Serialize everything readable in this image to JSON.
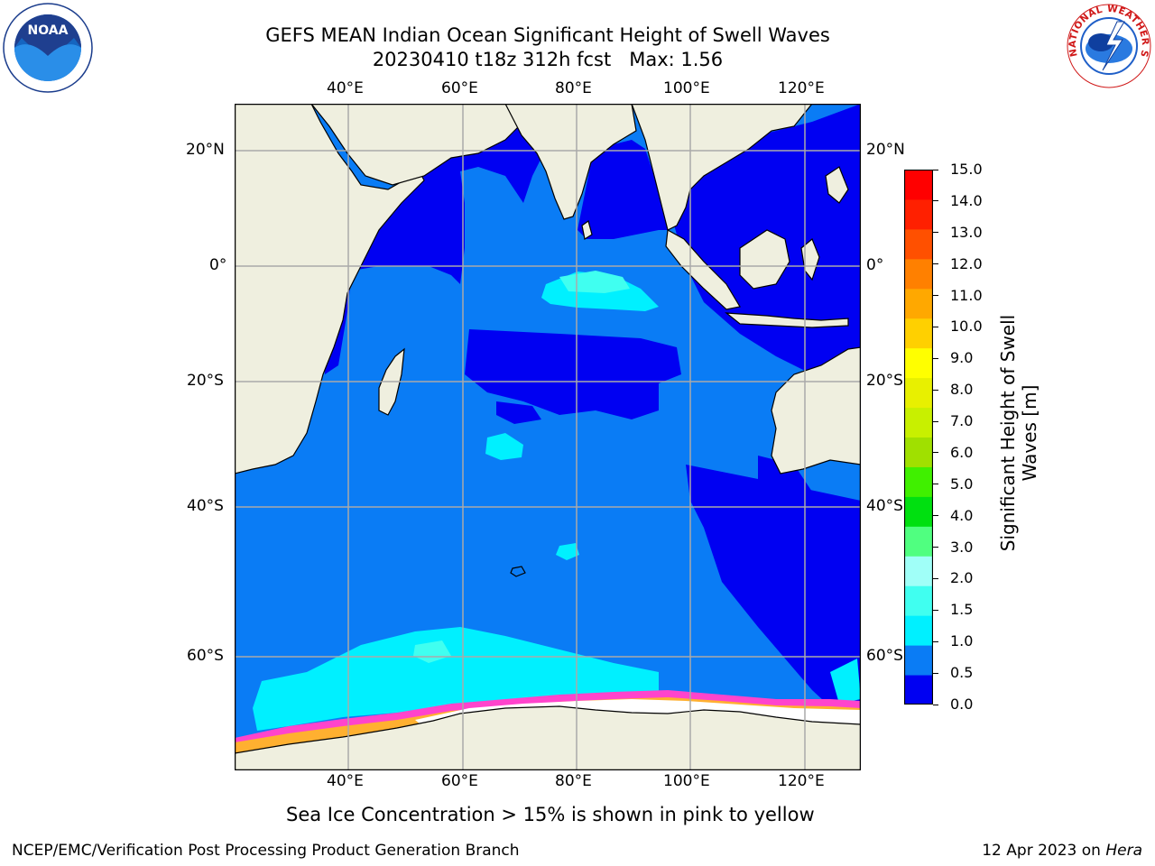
{
  "title": {
    "line1": "GEFS MEAN Indian Ocean Significant Height of Swell Waves",
    "line2": "20230410 t18z 312h fcst   Max: 1.56"
  },
  "map": {
    "lon_ticks_top": [
      "40°E",
      "60°E",
      "80°E",
      "100°E",
      "120°E"
    ],
    "lon_ticks_bottom": [
      "40°E",
      "60°E",
      "80°E",
      "100°E",
      "120°E"
    ],
    "lat_ticks_left": [
      "20°N",
      "0°",
      "20°S",
      "40°S",
      "60°S"
    ],
    "lat_ticks_right": [
      "20°N",
      "0°",
      "20°S",
      "40°S",
      "60°S"
    ],
    "colors": {
      "land": "#efefdf",
      "deep_blue": "#0000f2",
      "mid_blue": "#0a7cf5",
      "cyan": "#00fff0",
      "ice_white": "#ffffff",
      "ice_pink": "#ff44cc",
      "ice_orange": "#ffb030"
    }
  },
  "colorbar": {
    "label_line1": "Significant Height of Swell",
    "label_line2": "Waves [m]",
    "levels": [
      "0.0",
      "0.5",
      "1.0",
      "1.5",
      "2.0",
      "3.0",
      "4.0",
      "5.0",
      "6.0",
      "7.0",
      "8.0",
      "9.0",
      "10.0",
      "11.0",
      "12.0",
      "13.0",
      "14.0",
      "15.0"
    ],
    "colors": [
      "#0000f2",
      "#0a7cf5",
      "#00f0ff",
      "#40fff0",
      "#a0fff8",
      "#50ff80",
      "#00e010",
      "#40f000",
      "#a0e000",
      "#c8f000",
      "#e8f000",
      "#ffff00",
      "#ffd000",
      "#ffa800",
      "#ff8000",
      "#ff5000",
      "#ff2000",
      "#ff0000"
    ]
  },
  "note": "Sea Ice Concentration > 15% is shown in pink to yellow",
  "footer": {
    "left": "NCEP/EMC/Verification Post Processing Product Generation Branch",
    "right_date": "12 Apr 2023 on ",
    "right_machine": "Hera"
  },
  "logos": {
    "noaa": "NOAA",
    "nws": "NATIONAL WEATHER SERVICE"
  }
}
